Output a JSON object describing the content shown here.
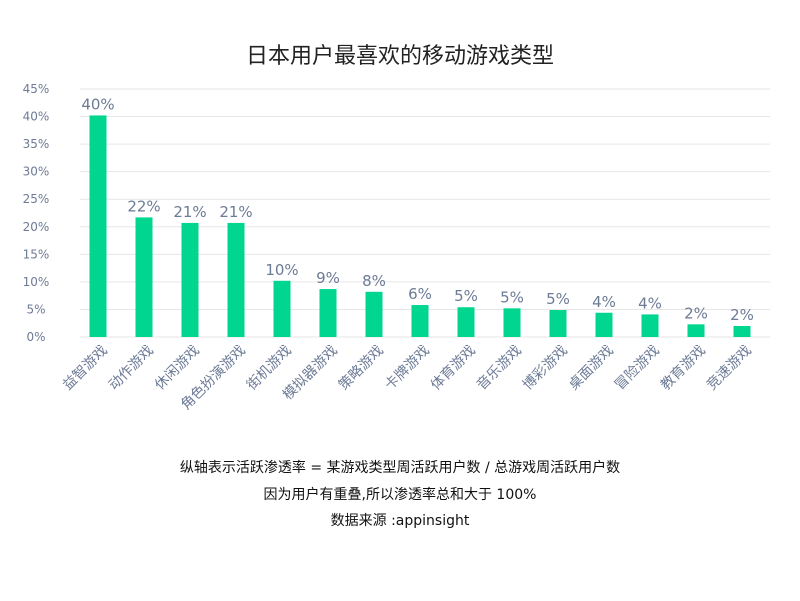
{
  "chart_data": {
    "type": "bar",
    "title": "日本用户最喜欢的移动游戏类型",
    "categories": [
      "益智游戏",
      "动作游戏",
      "休闲游戏",
      "角色扮演游戏",
      "街机游戏",
      "模拟器游戏",
      "策略游戏",
      "卡牌游戏",
      "体育游戏",
      "音乐游戏",
      "博彩游戏",
      "桌面游戏",
      "冒险游戏",
      "教育游戏",
      "竞速游戏"
    ],
    "values": [
      40,
      22,
      21,
      21,
      10,
      9,
      8,
      6,
      5,
      5,
      5,
      4,
      4,
      2,
      2
    ],
    "value_labels": [
      "40%",
      "22%",
      "21%",
      "21%",
      "10%",
      "9%",
      "8%",
      "6%",
      "5%",
      "5%",
      "5%",
      "4%",
      "4%",
      "2%",
      "2%"
    ],
    "plot_values": [
      40.2,
      21.7,
      20.7,
      20.7,
      10.2,
      8.7,
      8.2,
      5.8,
      5.4,
      5.2,
      4.9,
      4.4,
      4.1,
      2.3,
      2.0
    ],
    "ylim": [
      0,
      45
    ],
    "yticks": [
      "0%",
      "5%",
      "10%",
      "15%",
      "20%",
      "25%",
      "30%",
      "35%",
      "40%",
      "45%"
    ],
    "ytick_values": [
      0,
      5,
      10,
      15,
      20,
      25,
      30,
      35,
      40,
      45
    ],
    "grid": true,
    "colors": {
      "bar": "#00d68f",
      "label": "#6d7b96",
      "grid": "#e6e6e6"
    }
  },
  "notes": [
    "纵轴表示活跃渗透率 = 某游戏类型周活跃用户数 / 总游戏周活跃用户数",
    "因为用户有重叠,所以渗透率总和大于 100%",
    "数据来源 :appinsight"
  ]
}
